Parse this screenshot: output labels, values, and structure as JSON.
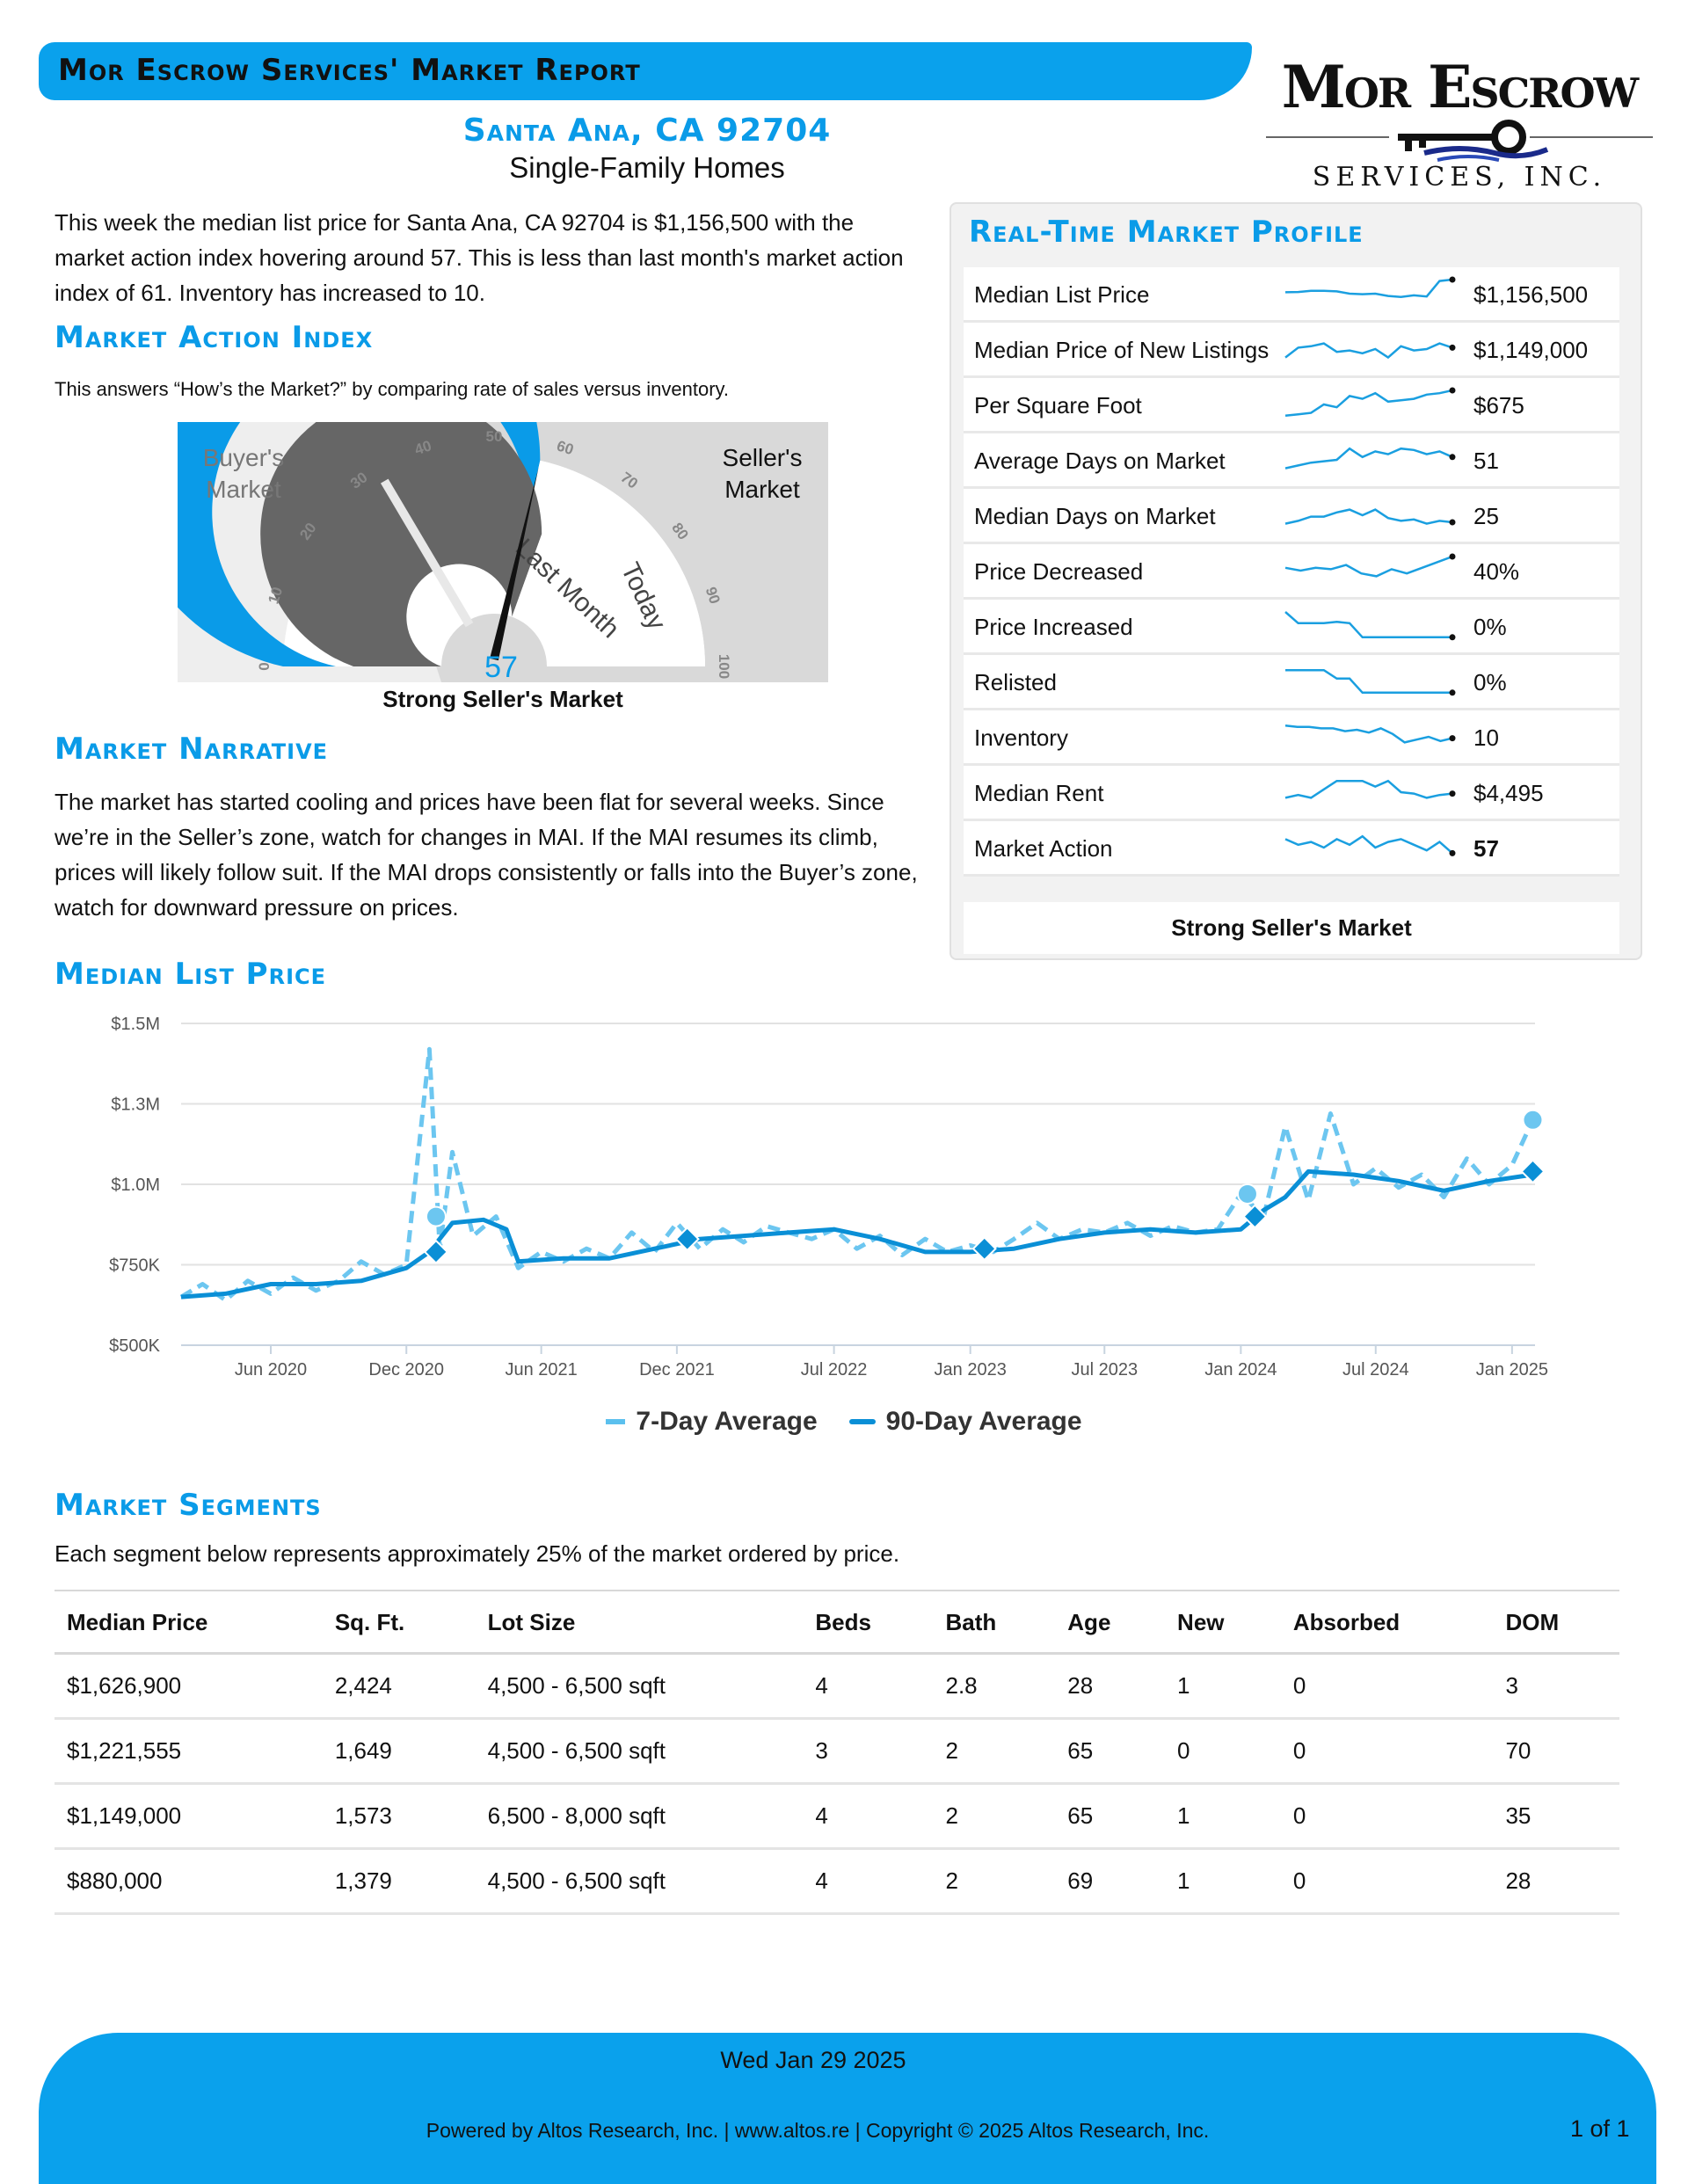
{
  "header": {
    "report_title": "Mor Escrow Services' Market Report",
    "city": "Santa Ana, CA 92704",
    "property_type": "Single-Family Homes"
  },
  "logo": {
    "name": "Mor Escrow",
    "sub": "SERVICES, INC."
  },
  "intro": "This week the median list price for Santa Ana, CA 92704 is $1,156,500 with the market action index hovering around 57. This is less than last month's market action index of 61. Inventory has increased to 10.",
  "mai": {
    "heading": "Market Action Index",
    "description": "This answers “How’s the Market?” by comparing rate of sales versus inventory.",
    "value": 57,
    "last_month": 61,
    "buyers_label_1": "Buyer's",
    "buyers_label_2": "Market",
    "sellers_label_1": "Seller's",
    "sellers_label_2": "Market",
    "last_month_label": "Last Month",
    "today_label": "Today",
    "ticks": [
      0,
      10,
      20,
      30,
      40,
      50,
      60,
      70,
      80,
      90,
      100
    ],
    "status": "Strong Seller's Market"
  },
  "narrative": {
    "heading": "Market Narrative",
    "text": "The market has started cooling and prices have been flat for several weeks. Since we’re in the Seller’s zone, watch for changes in MAI. If the MAI resumes its climb, prices will likely follow suit. If the MAI drops consistently or falls into the Buyer’s zone, watch for downward pressure on prices."
  },
  "profile": {
    "heading": "Real-Time Market Profile",
    "rows": [
      {
        "label": "Median List Price",
        "value": "$1,156,500",
        "bold": false,
        "spark": [
          0.55,
          0.56,
          0.6,
          0.6,
          0.58,
          0.5,
          0.48,
          0.5,
          0.42,
          0.38,
          0.44,
          0.4,
          0.95,
          1.0
        ]
      },
      {
        "label": "Median Price of New Listings",
        "value": "$1,149,000",
        "bold": false,
        "spark": [
          0.2,
          0.55,
          0.6,
          0.7,
          0.4,
          0.45,
          0.35,
          0.5,
          0.2,
          0.6,
          0.45,
          0.5,
          0.7,
          0.55
        ]
      },
      {
        "label": "Per Square Foot",
        "value": "$675",
        "bold": false,
        "spark": [
          0.1,
          0.15,
          0.2,
          0.5,
          0.4,
          0.8,
          0.7,
          0.9,
          0.6,
          0.65,
          0.7,
          0.85,
          0.9,
          1.0
        ]
      },
      {
        "label": "Average Days on Market",
        "value": "51",
        "bold": false,
        "spark": [
          0.2,
          0.3,
          0.4,
          0.45,
          0.5,
          0.9,
          0.6,
          0.8,
          0.7,
          0.9,
          0.85,
          0.7,
          0.8,
          0.6
        ]
      },
      {
        "label": "Median Days on Market",
        "value": "25",
        "bold": false,
        "spark": [
          0.2,
          0.3,
          0.45,
          0.45,
          0.6,
          0.7,
          0.5,
          0.7,
          0.4,
          0.3,
          0.35,
          0.2,
          0.3,
          0.25
        ]
      },
      {
        "label": "Price Decreased",
        "value": "40%",
        "bold": false,
        "spark": [
          0.6,
          0.5,
          0.6,
          0.55,
          0.7,
          0.4,
          0.3,
          0.55,
          0.4,
          0.6,
          0.8,
          1.0
        ]
      },
      {
        "label": "Price Increased",
        "value": "0%",
        "bold": false,
        "spark": [
          1.0,
          0.6,
          0.6,
          0.6,
          0.65,
          0.6,
          0.1,
          0.1,
          0.1,
          0.1,
          0.1,
          0.1,
          0.1,
          0.1
        ]
      },
      {
        "label": "Relisted",
        "value": "0%",
        "bold": false,
        "spark": [
          0.9,
          0.9,
          0.9,
          0.9,
          0.6,
          0.6,
          0.1,
          0.1,
          0.1,
          0.1,
          0.1,
          0.1,
          0.1,
          0.1
        ]
      },
      {
        "label": "Inventory",
        "value": "10",
        "bold": false,
        "spark": [
          0.9,
          0.85,
          0.85,
          0.8,
          0.8,
          0.7,
          0.75,
          0.65,
          0.8,
          0.6,
          0.3,
          0.4,
          0.5,
          0.35,
          0.45
        ]
      },
      {
        "label": "Median Rent",
        "value": "$4,495",
        "bold": false,
        "spark": [
          0.3,
          0.4,
          0.3,
          0.6,
          0.9,
          0.9,
          0.9,
          0.7,
          0.9,
          0.5,
          0.45,
          0.3,
          0.4,
          0.45
        ]
      },
      {
        "label": "Market Action",
        "value": "57",
        "bold": true,
        "spark": [
          0.8,
          0.6,
          0.7,
          0.5,
          0.8,
          0.6,
          0.9,
          0.5,
          0.7,
          0.8,
          0.6,
          0.4,
          0.7,
          0.3
        ]
      }
    ],
    "footer": "Strong Seller's Market"
  },
  "median_price_section": {
    "heading": "Median List Price"
  },
  "chart_data": {
    "type": "line",
    "title": "Median List Price",
    "xlabel": "",
    "ylabel": "",
    "ylim": [
      500000,
      1500000
    ],
    "y_ticks": [
      {
        "value": 500000,
        "label": "$500K"
      },
      {
        "value": 750000,
        "label": "$750K"
      },
      {
        "value": 1000000,
        "label": "$1.0M"
      },
      {
        "value": 1250000,
        "label": "$1.3M"
      },
      {
        "value": 1500000,
        "label": "$1.5M"
      }
    ],
    "x_range": [
      "2020-02-01",
      "2025-02-01"
    ],
    "x_ticks": [
      {
        "date": "2020-06-01",
        "label": "Jun 2020"
      },
      {
        "date": "2020-12-01",
        "label": "Dec 2020"
      },
      {
        "date": "2021-06-01",
        "label": "Jun 2021"
      },
      {
        "date": "2021-12-01",
        "label": "Dec 2021"
      },
      {
        "date": "2022-07-01",
        "label": "Jul 2022"
      },
      {
        "date": "2023-01-01",
        "label": "Jan 2023"
      },
      {
        "date": "2023-07-01",
        "label": "Jul 2023"
      },
      {
        "date": "2024-01-01",
        "label": "Jan 2024"
      },
      {
        "date": "2024-07-01",
        "label": "Jul 2024"
      },
      {
        "date": "2025-01-01",
        "label": "Jan 2025"
      }
    ],
    "series": [
      {
        "name": "7-Day Average",
        "color": "#6cc6f0",
        "points": [
          [
            "2020-02-01",
            650000
          ],
          [
            "2020-03-01",
            690000
          ],
          [
            "2020-04-01",
            640000
          ],
          [
            "2020-05-01",
            700000
          ],
          [
            "2020-06-01",
            660000
          ],
          [
            "2020-07-01",
            710000
          ],
          [
            "2020-08-01",
            670000
          ],
          [
            "2020-09-01",
            700000
          ],
          [
            "2020-10-01",
            760000
          ],
          [
            "2020-11-01",
            720000
          ],
          [
            "2020-12-01",
            750000
          ],
          [
            "2021-01-01",
            1420000
          ],
          [
            "2021-01-15",
            800000
          ],
          [
            "2021-02-01",
            1100000
          ],
          [
            "2021-03-01",
            840000
          ],
          [
            "2021-04-01",
            900000
          ],
          [
            "2021-05-01",
            740000
          ],
          [
            "2021-06-01",
            790000
          ],
          [
            "2021-07-01",
            760000
          ],
          [
            "2021-08-01",
            800000
          ],
          [
            "2021-09-01",
            770000
          ],
          [
            "2021-10-01",
            850000
          ],
          [
            "2021-11-01",
            790000
          ],
          [
            "2021-12-01",
            880000
          ],
          [
            "2022-01-01",
            800000
          ],
          [
            "2022-02-01",
            860000
          ],
          [
            "2022-03-01",
            820000
          ],
          [
            "2022-04-01",
            870000
          ],
          [
            "2022-05-01",
            850000
          ],
          [
            "2022-06-01",
            830000
          ],
          [
            "2022-07-01",
            860000
          ],
          [
            "2022-08-01",
            800000
          ],
          [
            "2022-09-01",
            840000
          ],
          [
            "2022-10-01",
            780000
          ],
          [
            "2022-11-01",
            830000
          ],
          [
            "2022-12-01",
            790000
          ],
          [
            "2023-01-01",
            810000
          ],
          [
            "2023-02-01",
            790000
          ],
          [
            "2023-03-01",
            830000
          ],
          [
            "2023-04-01",
            880000
          ],
          [
            "2023-05-01",
            830000
          ],
          [
            "2023-06-01",
            860000
          ],
          [
            "2023-07-01",
            850000
          ],
          [
            "2023-08-01",
            880000
          ],
          [
            "2023-09-01",
            840000
          ],
          [
            "2023-10-01",
            870000
          ],
          [
            "2023-11-01",
            850000
          ],
          [
            "2023-12-01",
            860000
          ],
          [
            "2024-01-01",
            970000
          ],
          [
            "2024-02-01",
            900000
          ],
          [
            "2024-03-01",
            1180000
          ],
          [
            "2024-04-01",
            950000
          ],
          [
            "2024-05-01",
            1220000
          ],
          [
            "2024-06-01",
            1000000
          ],
          [
            "2024-07-01",
            1050000
          ],
          [
            "2024-08-01",
            990000
          ],
          [
            "2024-09-01",
            1030000
          ],
          [
            "2024-10-01",
            960000
          ],
          [
            "2024-11-01",
            1080000
          ],
          [
            "2024-12-01",
            1000000
          ],
          [
            "2025-01-01",
            1060000
          ],
          [
            "2025-01-29",
            1200000
          ]
        ]
      },
      {
        "name": "90-Day Average",
        "color": "#0a8fd6",
        "points": [
          [
            "2020-02-01",
            650000
          ],
          [
            "2020-04-01",
            660000
          ],
          [
            "2020-06-01",
            690000
          ],
          [
            "2020-08-01",
            690000
          ],
          [
            "2020-10-01",
            700000
          ],
          [
            "2020-12-01",
            740000
          ],
          [
            "2021-01-01",
            790000
          ],
          [
            "2021-02-01",
            880000
          ],
          [
            "2021-03-15",
            890000
          ],
          [
            "2021-04-15",
            860000
          ],
          [
            "2021-05-01",
            760000
          ],
          [
            "2021-07-01",
            770000
          ],
          [
            "2021-09-01",
            770000
          ],
          [
            "2021-11-01",
            800000
          ],
          [
            "2022-01-01",
            830000
          ],
          [
            "2022-03-01",
            840000
          ],
          [
            "2022-05-01",
            850000
          ],
          [
            "2022-07-01",
            860000
          ],
          [
            "2022-09-01",
            830000
          ],
          [
            "2022-11-01",
            790000
          ],
          [
            "2023-01-01",
            790000
          ],
          [
            "2023-03-01",
            800000
          ],
          [
            "2023-05-01",
            830000
          ],
          [
            "2023-07-01",
            850000
          ],
          [
            "2023-09-01",
            860000
          ],
          [
            "2023-11-01",
            850000
          ],
          [
            "2024-01-01",
            860000
          ],
          [
            "2024-02-01",
            920000
          ],
          [
            "2024-03-01",
            960000
          ],
          [
            "2024-04-01",
            1040000
          ],
          [
            "2024-06-01",
            1030000
          ],
          [
            "2024-08-01",
            1010000
          ],
          [
            "2024-10-01",
            980000
          ],
          [
            "2024-12-01",
            1010000
          ],
          [
            "2025-01-29",
            1030000
          ]
        ]
      }
    ],
    "markers_7day": [
      [
        "2021-01-10",
        900000
      ],
      [
        "2024-01-10",
        970000
      ],
      [
        "2025-01-29",
        1200000
      ]
    ],
    "markers_90day": [
      [
        "2021-01-10",
        790000
      ],
      [
        "2021-12-15",
        830000
      ],
      [
        "2023-01-20",
        800000
      ],
      [
        "2024-01-20",
        900000
      ],
      [
        "2025-01-29",
        1040000
      ]
    ]
  },
  "legend": {
    "seven_day": "7-Day Average",
    "ninety_day": "90-Day Average"
  },
  "segments": {
    "heading": "Market Segments",
    "description": "Each segment below represents approximately 25% of the market ordered by price.",
    "columns": [
      "Median Price",
      "Sq. Ft.",
      "Lot Size",
      "Beds",
      "Bath",
      "Age",
      "New",
      "Absorbed",
      "DOM"
    ],
    "rows": [
      [
        "$1,626,900",
        "2,424",
        "4,500 - 6,500 sqft",
        "4",
        "2.8",
        "28",
        "1",
        "0",
        "3"
      ],
      [
        "$1,221,555",
        "1,649",
        "4,500 - 6,500 sqft",
        "3",
        "2",
        "65",
        "0",
        "0",
        "70"
      ],
      [
        "$1,149,000",
        "1,573",
        "6,500 - 8,000 sqft",
        "4",
        "2",
        "65",
        "1",
        "0",
        "35"
      ],
      [
        "$880,000",
        "1,379",
        "4,500 - 6,500 sqft",
        "4",
        "2",
        "69",
        "1",
        "0",
        "28"
      ]
    ]
  },
  "footer": {
    "date": "Wed Jan 29 2025",
    "credit": "Powered by Altos Research, Inc. | www.altos.re | Copyright © 2025 Altos Research, Inc.",
    "page": "1 of 1"
  },
  "colors": {
    "accent": "#0aa1ec",
    "gauge_blue": "#0a9be8",
    "gauge_dark": "#666666"
  }
}
